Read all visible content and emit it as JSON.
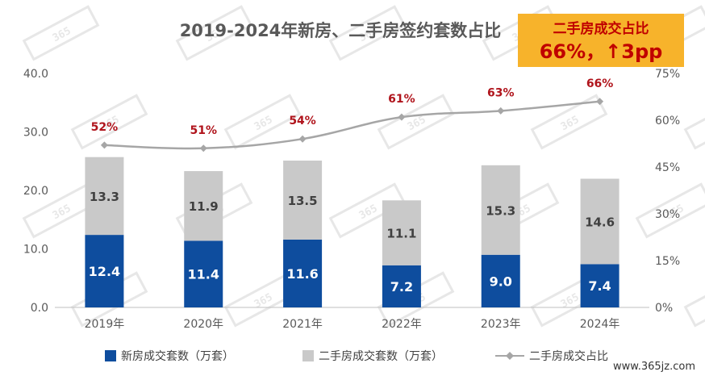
{
  "chart_data": {
    "type": "bar",
    "title": "2019-2024年新房、二手房签约套数占比",
    "categories": [
      "2019年",
      "2020年",
      "2021年",
      "2022年",
      "2023年",
      "2024年"
    ],
    "series": [
      {
        "name": "新房成交套数（万套）",
        "kind": "bar",
        "stack": "main",
        "color": "#0e4d9e",
        "values": [
          12.4,
          11.4,
          11.6,
          7.2,
          9.0,
          7.4
        ]
      },
      {
        "name": "二手房成交套数（万套）",
        "kind": "bar",
        "stack": "main",
        "color": "#c9c9c9",
        "values": [
          13.3,
          11.9,
          13.5,
          11.1,
          15.3,
          14.6
        ]
      },
      {
        "name": "二手房成交占比",
        "kind": "line",
        "axis": "right",
        "color": "#a6a6a6",
        "values": [
          52,
          51,
          54,
          61,
          63,
          66
        ],
        "labels": [
          "52%",
          "51%",
          "54%",
          "61%",
          "63%",
          "66%"
        ]
      }
    ],
    "y_left": {
      "min": 0,
      "max": 40,
      "ticks": [
        "0.0",
        "10.0",
        "20.0",
        "30.0",
        "40.0"
      ]
    },
    "y_right": {
      "min": 0,
      "max": 75,
      "ticks": [
        "0%",
        "15%",
        "30%",
        "45%",
        "60%",
        "75%"
      ]
    },
    "grid": false,
    "legend_position": "bottom",
    "callout": {
      "line1": "二手房成交占比",
      "line2": "66%，↑3pp",
      "bg": "#f7b32b"
    }
  },
  "watermark": {
    "text": "365",
    "site": "www.365jz.com"
  }
}
